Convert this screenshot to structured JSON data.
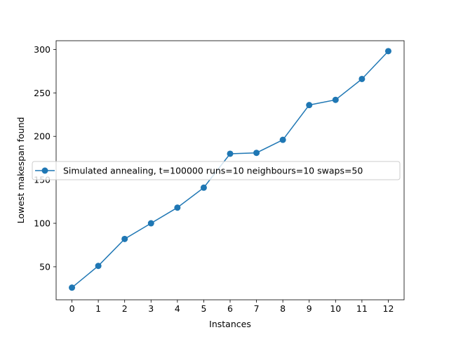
{
  "chart_data": {
    "type": "line",
    "title": "",
    "xlabel": "Instances",
    "ylabel": "Lowest makespan found",
    "x": [
      0,
      1,
      2,
      3,
      4,
      5,
      6,
      7,
      8,
      9,
      10,
      11,
      12
    ],
    "x_ticks": [
      "0",
      "1",
      "2",
      "3",
      "4",
      "5",
      "6",
      "7",
      "8",
      "9",
      "10",
      "11",
      "12"
    ],
    "y_ticks": [
      "50",
      "100",
      "150",
      "200",
      "250",
      "300"
    ],
    "xlim": [
      -0.6,
      12.6
    ],
    "ylim": [
      12,
      310
    ],
    "grid": false,
    "legend_position": "center-left",
    "series": [
      {
        "name": "Simulated annealing, t=100000 runs=10 neighbours=10 swaps=50",
        "color": "#1f77b4",
        "marker": "circle",
        "values": [
          26,
          51,
          82,
          100,
          118,
          141,
          180,
          181,
          196,
          236,
          242,
          266,
          298
        ]
      }
    ]
  }
}
